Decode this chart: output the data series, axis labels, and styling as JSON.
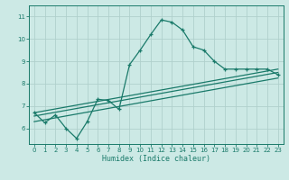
{
  "title": "",
  "xlabel": "Humidex (Indice chaleur)",
  "ylabel": "",
  "bg_color": "#cce9e5",
  "grid_color": "#b0d0cc",
  "line_color": "#1a7a6a",
  "xlim": [
    -0.5,
    23.5
  ],
  "ylim": [
    5.3,
    11.5
  ],
  "xticks": [
    0,
    1,
    2,
    3,
    4,
    5,
    6,
    7,
    8,
    9,
    10,
    11,
    12,
    13,
    14,
    15,
    16,
    17,
    18,
    19,
    20,
    21,
    22,
    23
  ],
  "yticks": [
    6,
    7,
    8,
    9,
    10,
    11
  ],
  "curve_x": [
    0,
    1,
    2,
    3,
    4,
    5,
    6,
    7,
    8,
    9,
    10,
    11,
    12,
    13,
    14,
    15,
    16,
    17,
    18,
    19,
    20,
    21,
    22,
    23
  ],
  "curve_y": [
    6.7,
    6.25,
    6.6,
    6.0,
    5.55,
    6.3,
    7.3,
    7.25,
    6.85,
    8.85,
    9.5,
    10.2,
    10.85,
    10.75,
    10.4,
    9.65,
    9.5,
    9.0,
    8.65,
    8.65,
    8.65,
    8.65,
    8.65,
    8.4
  ],
  "line1_x": [
    0,
    23
  ],
  "line1_y": [
    6.7,
    8.65
  ],
  "line2_x": [
    0,
    23
  ],
  "line2_y": [
    6.55,
    8.5
  ],
  "line3_x": [
    0,
    23
  ],
  "line3_y": [
    6.3,
    8.25
  ]
}
